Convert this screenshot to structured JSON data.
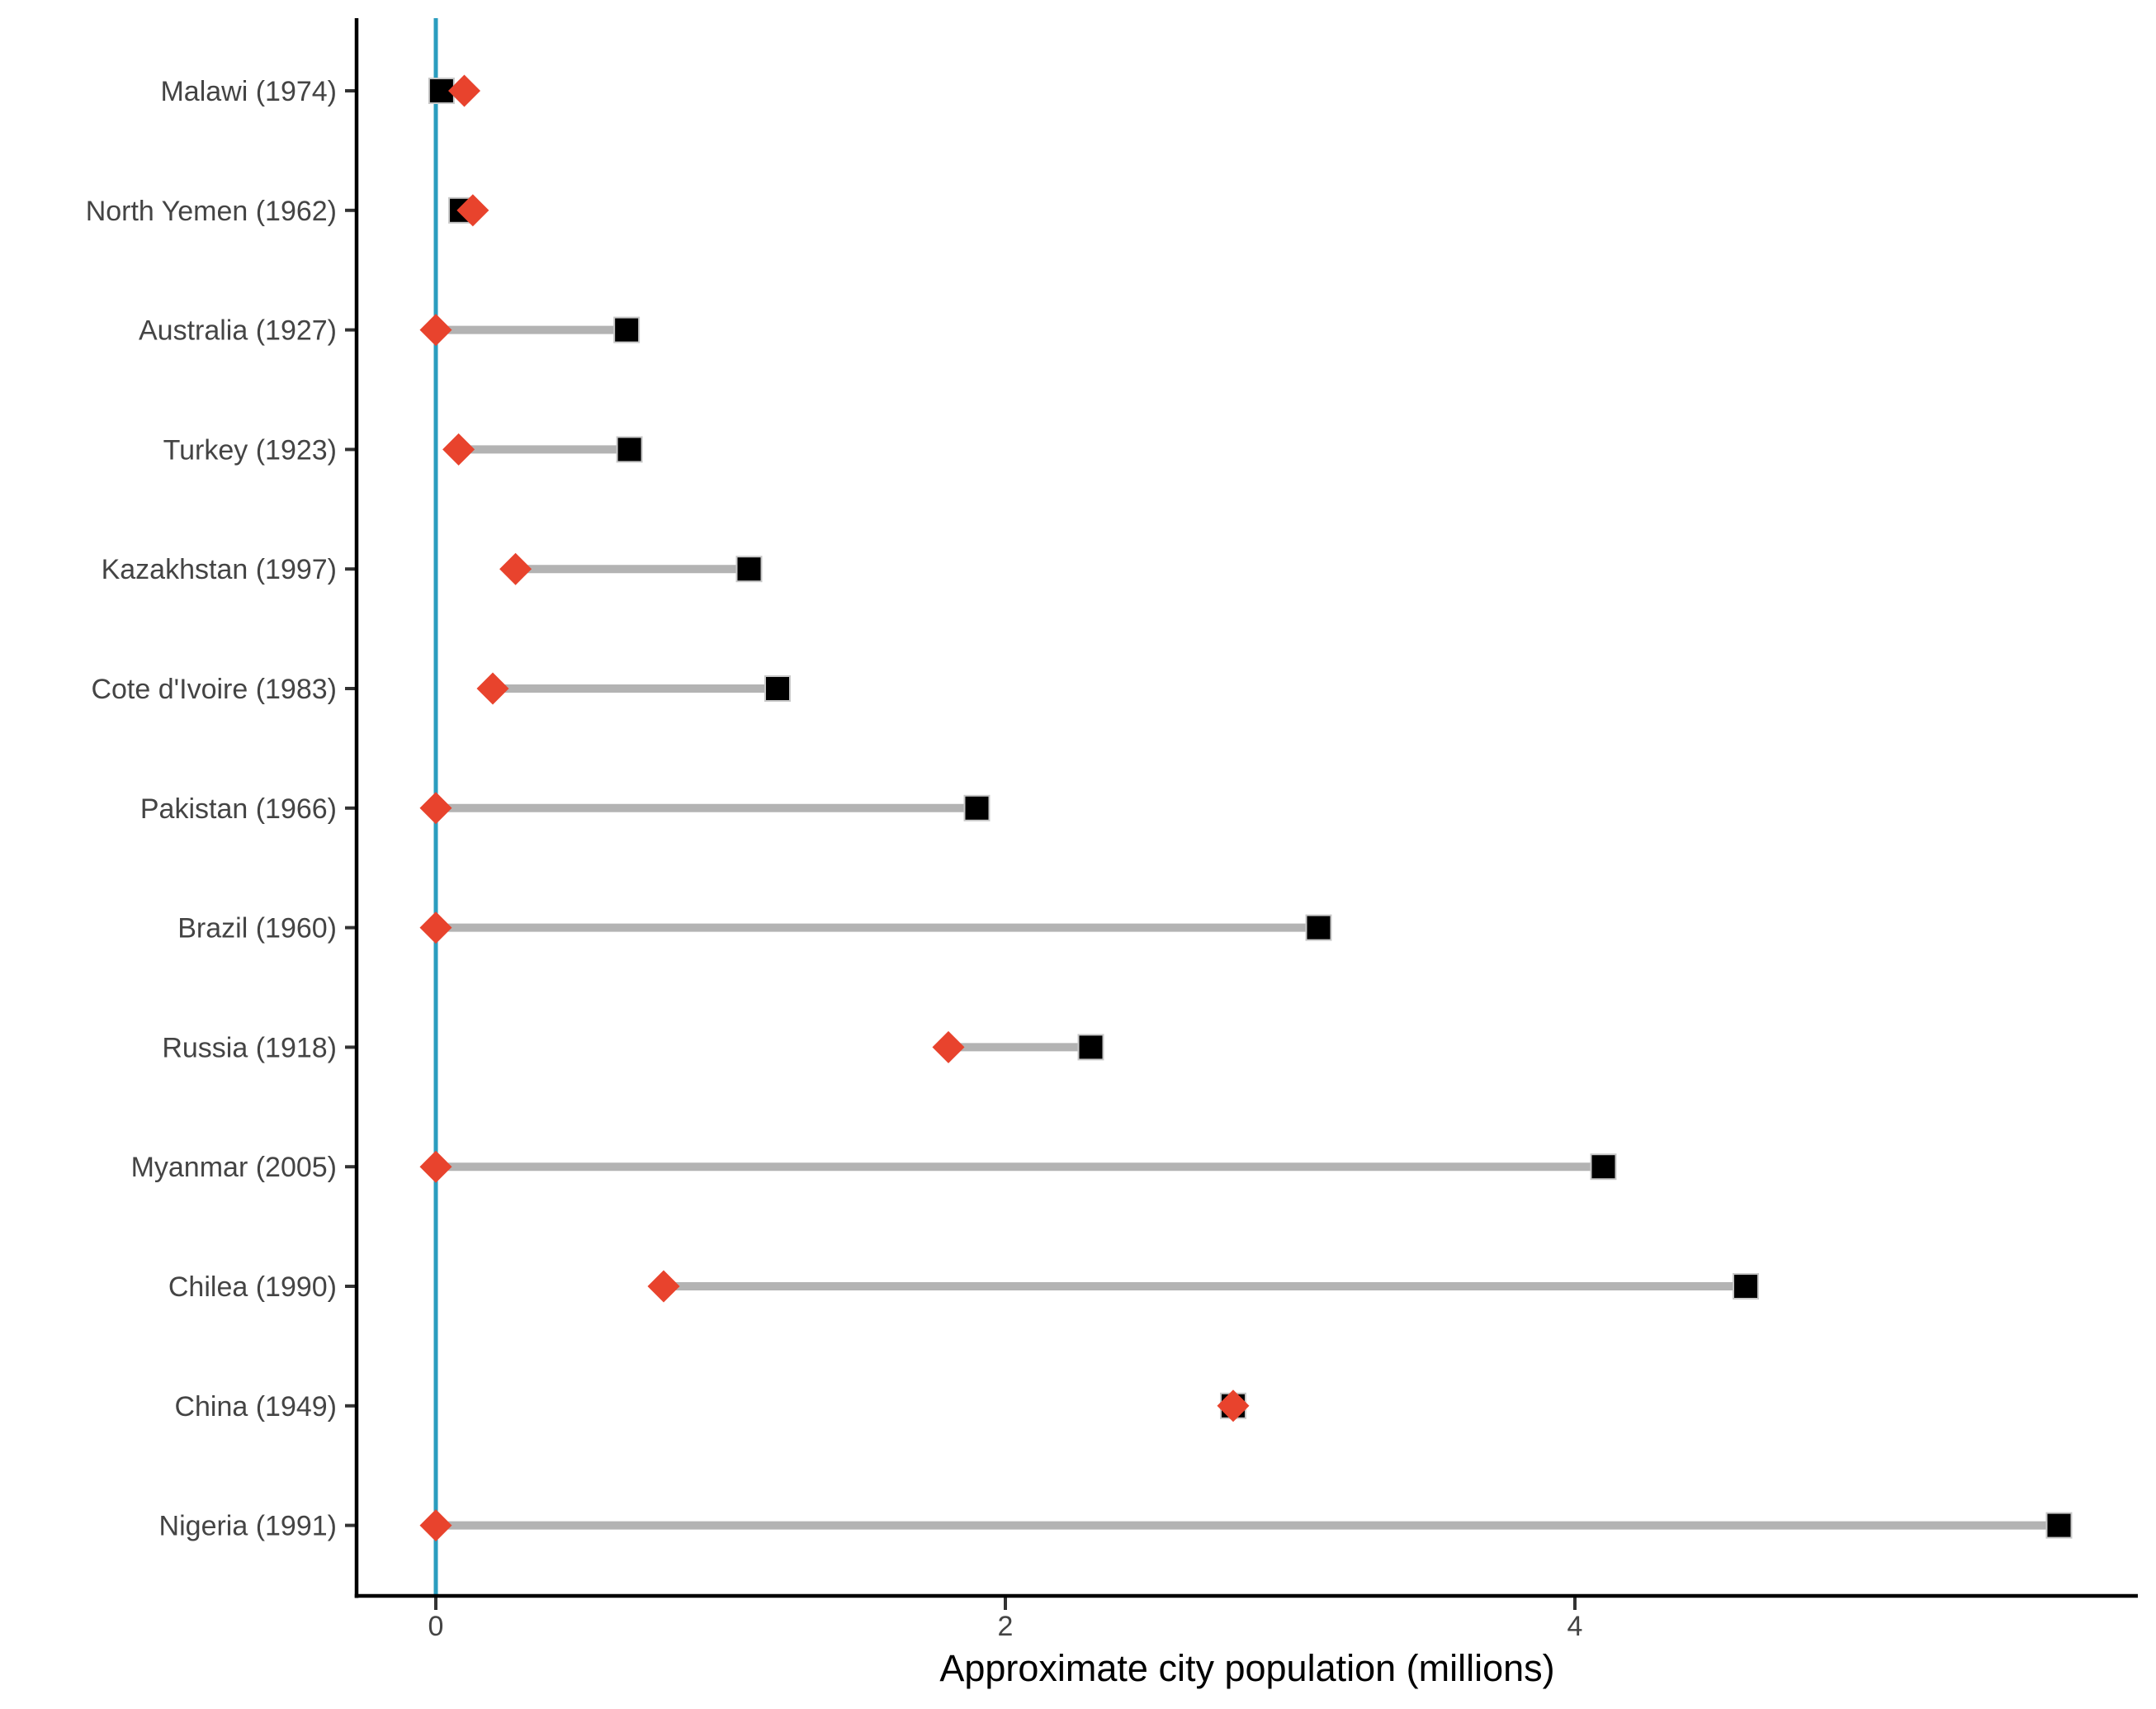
{
  "figure": {
    "background_color": "#FFFFFF"
  },
  "chart_data": {
    "type": "dumbbell",
    "orientation": "horizontal",
    "title": "",
    "xlabel": "Approximate city population (millions)",
    "ylabel": "",
    "x_ticks": [
      0,
      2,
      4
    ],
    "xlim": [
      -0.28,
      5.98
    ],
    "grid": "off",
    "legend": "none",
    "reference_line_x": 0,
    "categories": [
      "Malawi (1974)",
      "North Yemen (1962)",
      "Australia (1927)",
      "Turkey (1923)",
      "Kazakhstan (1997)",
      "Cote d'Ivoire (1983)",
      "Pakistan (1966)",
      "Brazil (1960)",
      "Russia (1918)",
      "Myanmar (2005)",
      "Chilea (1990)",
      "China (1949)",
      "Nigeria (1991)"
    ],
    "series": [
      {
        "name": "diamond-marker-series",
        "marker": "diamond",
        "color": "#E8432D",
        "values": [
          0.1,
          0.13,
          0.0,
          0.08,
          0.28,
          0.2,
          0.0,
          0.0,
          1.8,
          0.0,
          0.8,
          2.8,
          0.0
        ]
      },
      {
        "name": "square-marker-series",
        "marker": "square",
        "color": "#000000",
        "values": [
          0.02,
          0.09,
          0.67,
          0.68,
          1.1,
          1.2,
          1.9,
          3.1,
          2.3,
          4.1,
          4.6,
          2.8,
          5.7
        ]
      }
    ],
    "colors": {
      "connector": "#B3B3B3",
      "reference_line": "#2A9DBF",
      "axis_line": "#000000",
      "tick_mark": "#333333",
      "axis_text": "#444444",
      "axis_title": "#000000",
      "square_outline": "#C8C8C8"
    }
  }
}
